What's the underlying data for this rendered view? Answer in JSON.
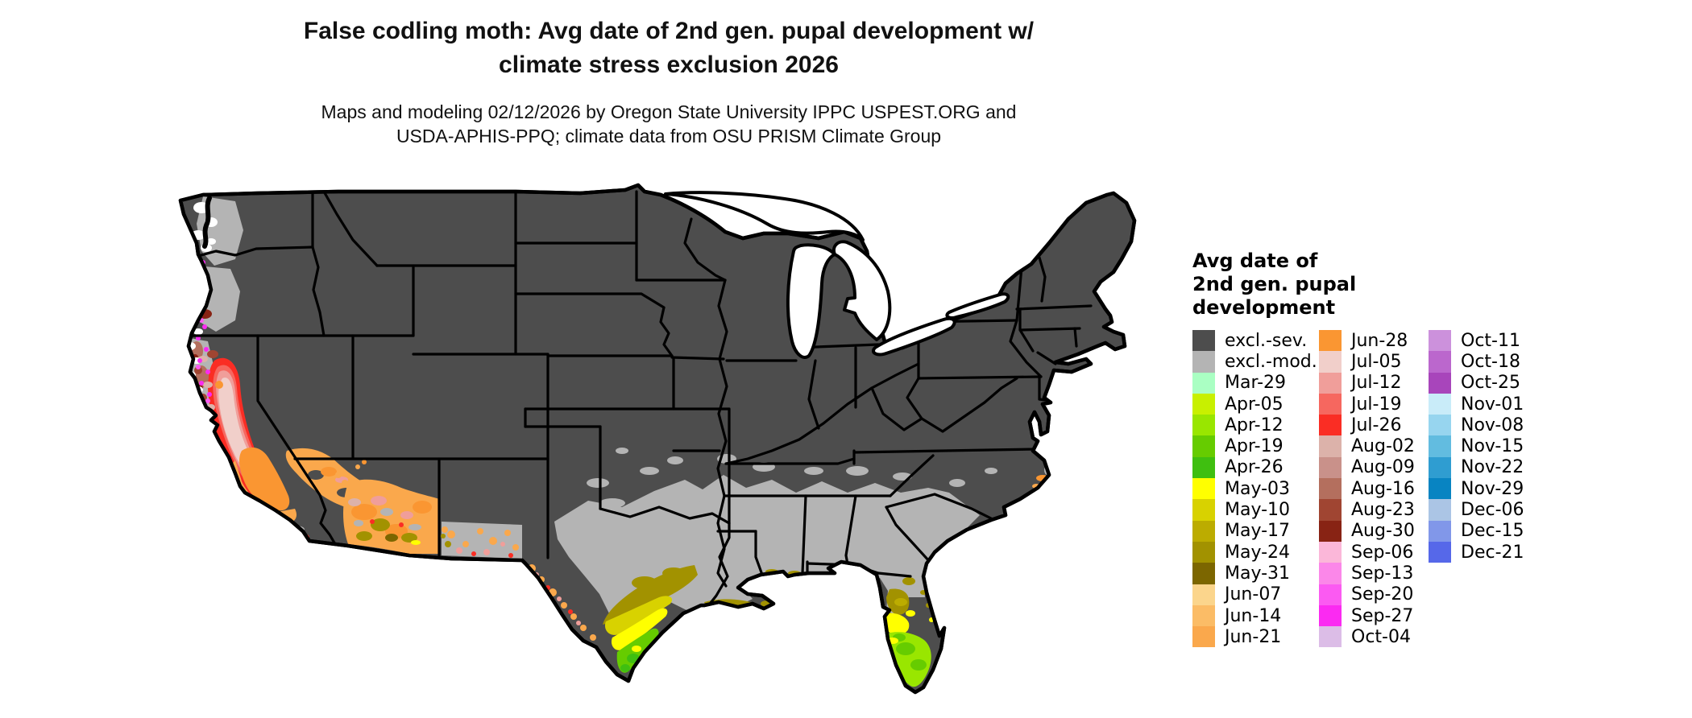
{
  "title": {
    "line1": "False codling moth: Avg date of 2nd gen. pupal development w/",
    "line2": "climate stress exclusion 2026"
  },
  "subtitle": {
    "line1": "Maps and modeling 02/12/2026 by Oregon State University IPPC USPEST.ORG and",
    "line2": "USDA-APHIS-PPQ; climate data from OSU PRISM Climate Group"
  },
  "legend": {
    "title_lines": [
      "Avg date of",
      "2nd gen. pupal",
      "development"
    ],
    "columns": [
      [
        {
          "label": "excl.-sev.",
          "color": "#4d4d4d"
        },
        {
          "label": "excl.-mod.",
          "color": "#b4b4b4"
        },
        {
          "label": "Mar-29",
          "color": "#aaffc3"
        },
        {
          "label": "Apr-05",
          "color": "#c8f000"
        },
        {
          "label": "Apr-12",
          "color": "#99e600"
        },
        {
          "label": "Apr-19",
          "color": "#66cc00"
        },
        {
          "label": "Apr-26",
          "color": "#3fbf10"
        },
        {
          "label": "May-03",
          "color": "#ffff00"
        },
        {
          "label": "May-10",
          "color": "#d8d200"
        },
        {
          "label": "May-17",
          "color": "#bcac00"
        },
        {
          "label": "May-24",
          "color": "#a29200"
        },
        {
          "label": "May-31",
          "color": "#7c6600"
        },
        {
          "label": "Jun-07",
          "color": "#fbd58c"
        },
        {
          "label": "Jun-14",
          "color": "#fbbc66"
        },
        {
          "label": "Jun-21",
          "color": "#faa84c"
        }
      ],
      [
        {
          "label": "Jun-28",
          "color": "#fa9632"
        },
        {
          "label": "Jul-05",
          "color": "#f1cfca"
        },
        {
          "label": "Jul-12",
          "color": "#f09e9a"
        },
        {
          "label": "Jul-19",
          "color": "#f6675f"
        },
        {
          "label": "Jul-26",
          "color": "#fa2d24"
        },
        {
          "label": "Aug-02",
          "color": "#dcb2aa"
        },
        {
          "label": "Aug-09",
          "color": "#c9918a"
        },
        {
          "label": "Aug-16",
          "color": "#b46f5e"
        },
        {
          "label": "Aug-23",
          "color": "#a04532"
        },
        {
          "label": "Aug-30",
          "color": "#882314"
        },
        {
          "label": "Sep-06",
          "color": "#fbb7d9"
        },
        {
          "label": "Sep-13",
          "color": "#fb87e9"
        },
        {
          "label": "Sep-20",
          "color": "#fb5af2"
        },
        {
          "label": "Sep-27",
          "color": "#fb2af2"
        },
        {
          "label": "Oct-04",
          "color": "#dcbde7"
        }
      ],
      [
        {
          "label": "Oct-11",
          "color": "#cc91dc"
        },
        {
          "label": "Oct-18",
          "color": "#bb67cd"
        },
        {
          "label": "Oct-25",
          "color": "#a845bb"
        },
        {
          "label": "Nov-01",
          "color": "#c9ecf9"
        },
        {
          "label": "Nov-08",
          "color": "#97d5ef"
        },
        {
          "label": "Nov-15",
          "color": "#62bce0"
        },
        {
          "label": "Nov-22",
          "color": "#2f9dd1"
        },
        {
          "label": "Nov-29",
          "color": "#0884c2"
        },
        {
          "label": "Dec-06",
          "color": "#abc5e5"
        },
        {
          "label": "Dec-15",
          "color": "#8197e9"
        },
        {
          "label": "Dec-21",
          "color": "#5668e9"
        }
      ]
    ]
  },
  "map": {
    "description": "Contiguous United States choropleth of modeled pupal development dates",
    "base_color": "#4d4d4d",
    "excluded_moderate_color": "#b4b4b4",
    "border_color": "#000000",
    "background_color": "#ffffff"
  }
}
